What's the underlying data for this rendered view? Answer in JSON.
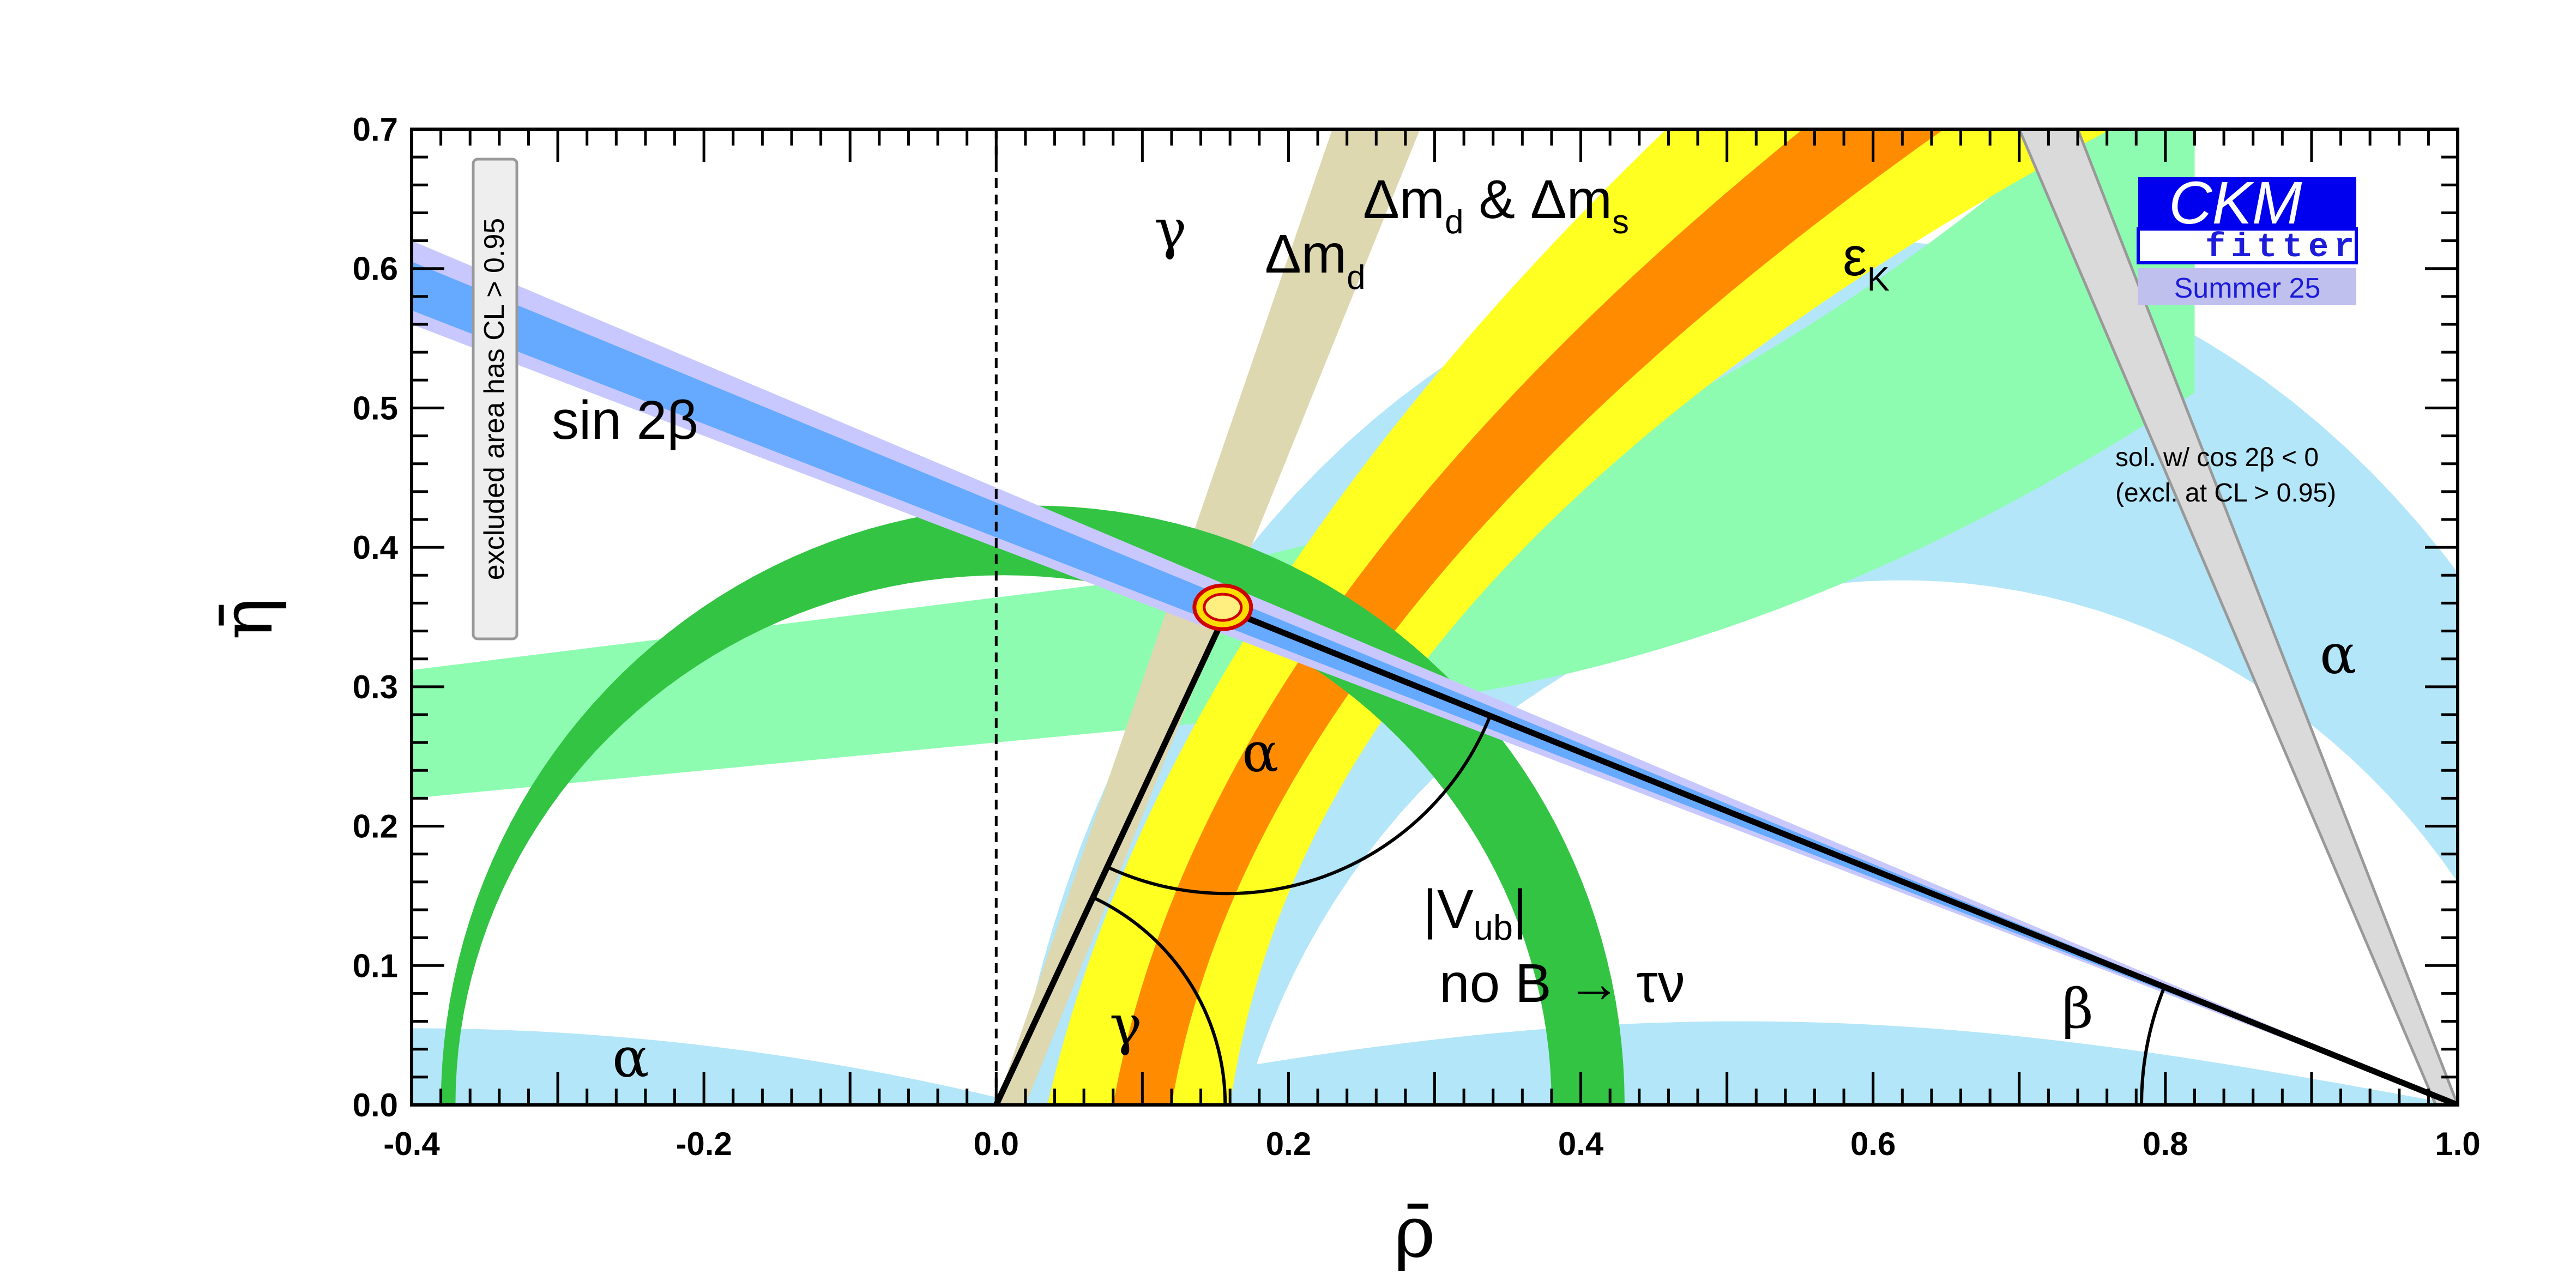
{
  "chart_data": {
    "type": "scatter",
    "xlabel": "ρ̄",
    "ylabel": "η̄",
    "xlim": [
      -0.4,
      1.0
    ],
    "ylim": [
      0.0,
      0.7
    ],
    "x_ticks": [
      "-0.4",
      "-0.2",
      "0.0",
      "0.2",
      "0.4",
      "0.6",
      "0.8",
      "1.0"
    ],
    "y_ticks": [
      "0.0",
      "0.1",
      "0.2",
      "0.3",
      "0.4",
      "0.5",
      "0.6",
      "0.7"
    ],
    "x_tick_values": [
      -0.4,
      -0.2,
      0.0,
      0.2,
      0.4,
      0.6,
      0.8,
      1.0
    ],
    "y_tick_values": [
      0.0,
      0.1,
      0.2,
      0.3,
      0.4,
      0.5,
      0.6,
      0.7
    ],
    "grid": false,
    "colors": {
      "sin2beta_inner": "#66aaff",
      "sin2beta_outer": "#c8c8ff",
      "vub": "#33c444",
      "alpha": "#b3e6f8",
      "epsilon_k": "#8dfcb0",
      "dmd_dms_core": "#ff8c00",
      "dmd_dms_outer": "#ffff22",
      "gamma": "#ddd8b0",
      "cos2beta": "#dadada",
      "fit_contour": "#d00000"
    },
    "apex": {
      "x": 0.158,
      "y": 0.355
    },
    "triangle_vertices": [
      [
        0.0,
        0.0
      ],
      [
        1.0,
        0.0
      ],
      [
        0.158,
        0.355
      ]
    ],
    "constraints": [
      {
        "name": "sin 2β",
        "label": "sin 2β"
      },
      {
        "name": "|Vub|",
        "label_main": "|V",
        "label_sub": "ub",
        "label_close": "|",
        "label_line2": "no B → τν"
      },
      {
        "name": "α",
        "label": "α"
      },
      {
        "name": "εK",
        "label_main": "ε",
        "label_sub": "K"
      },
      {
        "name": "Δmd",
        "label_main": "Δm",
        "label_sub": "d"
      },
      {
        "name": "Δmd & Δms",
        "label_a": "Δm",
        "label_sub_a": "d",
        "label_mid": " & Δm",
        "label_sub_b": "s"
      },
      {
        "name": "γ",
        "label": "γ"
      }
    ],
    "angles": {
      "alpha": "α",
      "beta": "β",
      "gamma": "γ"
    },
    "annotations": {
      "cos2beta_line1": "sol. w/ cos 2β < 0",
      "cos2beta_line2": "(excl. at CL > 0.95)",
      "excluded": "excluded area has CL > 0.95"
    },
    "logo": {
      "main": "CKM",
      "sub": "fitter",
      "edition": "Summer 25"
    }
  }
}
